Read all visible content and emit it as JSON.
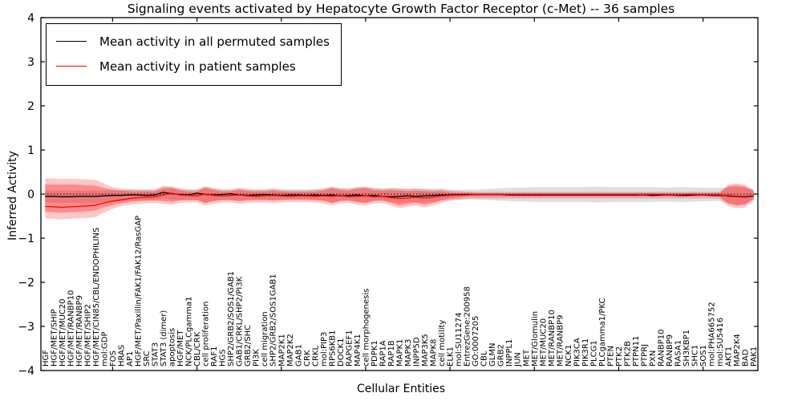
{
  "figure": {
    "title": "Signaling events activated by Hepatocyte Growth Factor Receptor (c-Met) -- 36 samples",
    "xlabel": "Cellular Entities",
    "ylabel": "Inferred Activity"
  },
  "legend": {
    "items": [
      {
        "label": "Mean activity in all permuted samples",
        "color": "#000000"
      },
      {
        "label": "Mean activity in patient samples",
        "color": "#ff0000"
      }
    ]
  },
  "chart_data": {
    "type": "line",
    "title": "Signaling events activated by Hepatocyte Growth Factor Receptor (c-Met) -- 36 samples",
    "xlabel": "Cellular Entities",
    "ylabel": "Inferred Activity",
    "ylim": [
      -4,
      4
    ],
    "yticks": [
      -4,
      -3,
      -2,
      -1,
      0,
      1,
      2,
      3,
      4
    ],
    "yticklabels": [
      "−4",
      "−3",
      "−2",
      "−1",
      "0",
      "1",
      "2",
      "3",
      "4"
    ],
    "grid": false,
    "legend_position": "upper left",
    "zero_reference_line": "dotted",
    "x_major_tick_indices": [
      8,
      18,
      28,
      38,
      48,
      58,
      68,
      78
    ],
    "categories": [
      "HGF",
      "HGF/MET/SHIP",
      "HGF/MET/MUC20",
      "HGF/MET/RANBP10",
      "HGF/MET/RANBP9",
      "HGF/MET/SHIP2",
      "HGF/MET/CIN85/CBL/ENDOPHILINS",
      "mol:GDP",
      "FOS",
      "HRAS",
      "AP1",
      "HGF/MET/Paxillin/FAK1/FAK12/RasGAP",
      "SRC",
      "STAT3",
      "STAT3 (dimer)",
      "apoptosis",
      "HGF/MET",
      "NCK/PLCgamma1",
      "CBL/CRK",
      "cell proliferation",
      "RAF1",
      "HGS",
      "SHP2/GRB2/SOS1/GAB1",
      "GAB1/CRKL/SHP2/PI3K",
      "GRB2/SHC",
      "PI3K",
      "cell migration",
      "SHP2/GRB2/SOS1GAB1",
      "MAP2K1",
      "MAP2K2",
      "GAB1",
      "CRK",
      "CRKL",
      "mol:PIP3",
      "RPS6KB1",
      "DOCK1",
      "RAPGEF1",
      "MAP4K1",
      "cell morphogenesis",
      "PDPK1",
      "RAP1A",
      "RAP1B",
      "MAPK1",
      "MAPK3",
      "INPP5D",
      "MAP3K5",
      "MAPK8",
      "cell motility",
      "ELK1",
      "mol:SU11274",
      "EntrezGene:200958",
      "GO:0007205",
      "CBL",
      "GLMN",
      "GRB2",
      "INPPL1",
      "JUN",
      "MET",
      "MET/Glomulin",
      "MET/MUC20",
      "MET/RANBP10",
      "MET/RANBP9",
      "NCK1",
      "PIK3CA",
      "PIK3R1",
      "PLCG1",
      "PLCgamma1/PKC",
      "PTEN",
      "PTK2",
      "PTK2B",
      "PTPN11",
      "PTPRJ",
      "PXN",
      "RANBP10",
      "RANBP9",
      "RASA1",
      "SH3KBP1",
      "SHC1",
      "SOS1",
      "mol:PHA665752",
      "mol:SU5416",
      "AKT1",
      "MAP2K4",
      "BAD",
      "PAK1"
    ],
    "series": [
      {
        "name": "Mean activity in all permuted samples",
        "color": "#000000",
        "values": [
          -0.05,
          -0.05,
          -0.06,
          -0.06,
          -0.05,
          -0.05,
          -0.05,
          -0.04,
          -0.03,
          -0.03,
          -0.02,
          -0.02,
          -0.03,
          -0.02,
          0.04,
          0.01,
          -0.01,
          -0.02,
          0.02,
          -0.01,
          -0.02,
          -0.01,
          0.01,
          -0.02,
          -0.03,
          -0.02,
          -0.01,
          -0.02,
          -0.03,
          -0.02,
          -0.02,
          -0.03,
          -0.02,
          -0.03,
          -0.02,
          -0.04,
          -0.03,
          -0.02,
          -0.04,
          -0.03,
          -0.05,
          -0.06,
          -0.05,
          -0.04,
          -0.05,
          -0.04,
          -0.03,
          -0.02,
          -0.02,
          -0.01,
          -0.01,
          -0.01,
          -0.01,
          -0.01,
          -0.01,
          -0.02,
          -0.02,
          -0.02,
          -0.02,
          -0.02,
          -0.02,
          -0.02,
          -0.02,
          -0.02,
          -0.02,
          -0.02,
          -0.02,
          -0.02,
          -0.02,
          -0.02,
          -0.02,
          -0.02,
          -0.03,
          -0.02,
          -0.02,
          -0.03,
          -0.03,
          -0.02,
          -0.02,
          -0.03,
          -0.03,
          -0.04,
          -0.05,
          -0.06,
          -0.04
        ]
      },
      {
        "name": "Mean activity in patient samples",
        "color": "#ff0000",
        "values": [
          -0.28,
          -0.29,
          -0.3,
          -0.29,
          -0.28,
          -0.27,
          -0.25,
          -0.2,
          -0.16,
          -0.13,
          -0.1,
          -0.08,
          -0.07,
          -0.06,
          -0.02,
          0.02,
          -0.02,
          -0.03,
          -0.04,
          0.0,
          -0.03,
          -0.04,
          -0.03,
          -0.02,
          -0.04,
          -0.05,
          -0.04,
          -0.03,
          -0.04,
          -0.05,
          -0.04,
          -0.04,
          -0.05,
          -0.04,
          -0.05,
          -0.03,
          -0.06,
          -0.05,
          -0.04,
          -0.06,
          -0.05,
          -0.08,
          -0.1,
          -0.09,
          -0.07,
          -0.09,
          -0.07,
          -0.04,
          -0.03,
          -0.02,
          -0.02,
          -0.01,
          -0.01,
          -0.01,
          -0.01,
          -0.01,
          -0.01,
          -0.01,
          -0.01,
          -0.01,
          -0.01,
          -0.01,
          -0.01,
          -0.01,
          -0.01,
          -0.01,
          -0.01,
          -0.01,
          -0.01,
          -0.01,
          -0.01,
          -0.02,
          -0.01,
          -0.01,
          -0.02,
          -0.02,
          -0.01,
          -0.01,
          -0.02,
          -0.02,
          -0.02,
          -0.05,
          -0.06,
          -0.07,
          -0.05
        ]
      }
    ],
    "bands": [
      {
        "name": "permuted samples range",
        "color": "#b0b0b0",
        "opacity": 0.4,
        "upper": [
          0.08,
          0.08,
          0.08,
          0.08,
          0.08,
          0.08,
          0.08,
          0.08,
          0.09,
          0.09,
          0.1,
          0.1,
          0.1,
          0.1,
          0.2,
          0.14,
          0.12,
          0.1,
          0.1,
          0.16,
          0.12,
          0.1,
          0.1,
          0.12,
          0.1,
          0.1,
          0.1,
          0.12,
          0.1,
          0.1,
          0.1,
          0.1,
          0.11,
          0.12,
          0.16,
          0.13,
          0.12,
          0.15,
          0.16,
          0.13,
          0.12,
          0.14,
          0.13,
          0.12,
          0.13,
          0.12,
          0.11,
          0.12,
          0.1,
          0.1,
          0.1,
          0.1,
          0.11,
          0.12,
          0.13,
          0.14,
          0.15,
          0.15,
          0.16,
          0.16,
          0.16,
          0.16,
          0.16,
          0.16,
          0.16,
          0.17,
          0.17,
          0.16,
          0.16,
          0.16,
          0.16,
          0.16,
          0.16,
          0.15,
          0.15,
          0.16,
          0.16,
          0.15,
          0.15,
          0.14,
          0.14,
          0.15,
          0.16,
          0.14,
          0.1
        ],
        "lower": [
          -0.2,
          -0.2,
          -0.2,
          -0.2,
          -0.2,
          -0.2,
          -0.2,
          -0.18,
          -0.17,
          -0.16,
          -0.15,
          -0.14,
          -0.14,
          -0.14,
          -0.1,
          -0.13,
          -0.14,
          -0.14,
          -0.14,
          -0.2,
          -0.16,
          -0.14,
          -0.14,
          -0.16,
          -0.14,
          -0.13,
          -0.13,
          -0.15,
          -0.13,
          -0.13,
          -0.13,
          -0.13,
          -0.14,
          -0.15,
          -0.2,
          -0.16,
          -0.15,
          -0.18,
          -0.2,
          -0.16,
          -0.15,
          -0.18,
          -0.2,
          -0.18,
          -0.18,
          -0.19,
          -0.17,
          -0.15,
          -0.13,
          -0.12,
          -0.12,
          -0.12,
          -0.13,
          -0.14,
          -0.15,
          -0.16,
          -0.17,
          -0.17,
          -0.18,
          -0.18,
          -0.18,
          -0.18,
          -0.18,
          -0.18,
          -0.18,
          -0.19,
          -0.19,
          -0.18,
          -0.18,
          -0.18,
          -0.18,
          -0.18,
          -0.18,
          -0.17,
          -0.17,
          -0.18,
          -0.18,
          -0.17,
          -0.17,
          -0.16,
          -0.16,
          -0.2,
          -0.25,
          -0.22,
          -0.12
        ]
      },
      {
        "name": "patient samples outer range",
        "color": "#ff0000",
        "opacity": 0.22,
        "upper": [
          0.35,
          0.35,
          0.34,
          0.35,
          0.34,
          0.33,
          0.32,
          0.24,
          0.16,
          0.12,
          0.11,
          0.1,
          0.1,
          0.1,
          0.16,
          0.18,
          0.12,
          0.1,
          0.1,
          0.18,
          0.13,
          0.1,
          0.1,
          0.14,
          0.11,
          0.1,
          0.1,
          0.12,
          0.1,
          0.09,
          0.09,
          0.09,
          0.1,
          0.12,
          0.17,
          0.13,
          0.12,
          0.16,
          0.17,
          0.13,
          0.12,
          0.13,
          0.12,
          0.11,
          0.12,
          0.11,
          0.1,
          0.11,
          0.08,
          0.07,
          0.06,
          0.05,
          0.05,
          0.05,
          0.05,
          0.05,
          0.05,
          0.05,
          0.05,
          0.05,
          0.05,
          0.05,
          0.05,
          0.05,
          0.05,
          0.05,
          0.05,
          0.05,
          0.05,
          0.05,
          0.05,
          0.05,
          0.05,
          0.05,
          0.05,
          0.05,
          0.05,
          0.05,
          0.05,
          0.05,
          0.06,
          0.22,
          0.24,
          0.21,
          0.1
        ],
        "lower": [
          -0.55,
          -0.56,
          -0.57,
          -0.56,
          -0.55,
          -0.54,
          -0.52,
          -0.42,
          -0.33,
          -0.27,
          -0.24,
          -0.22,
          -0.21,
          -0.2,
          -0.22,
          -0.24,
          -0.2,
          -0.19,
          -0.19,
          -0.26,
          -0.22,
          -0.19,
          -0.19,
          -0.22,
          -0.2,
          -0.19,
          -0.19,
          -0.2,
          -0.19,
          -0.18,
          -0.18,
          -0.18,
          -0.19,
          -0.21,
          -0.26,
          -0.21,
          -0.2,
          -0.24,
          -0.26,
          -0.21,
          -0.2,
          -0.26,
          -0.32,
          -0.28,
          -0.26,
          -0.3,
          -0.26,
          -0.2,
          -0.15,
          -0.13,
          -0.11,
          -0.1,
          -0.1,
          -0.1,
          -0.1,
          -0.1,
          -0.1,
          -0.1,
          -0.1,
          -0.1,
          -0.1,
          -0.1,
          -0.1,
          -0.1,
          -0.1,
          -0.1,
          -0.1,
          -0.1,
          -0.1,
          -0.1,
          -0.1,
          -0.1,
          -0.1,
          -0.1,
          -0.1,
          -0.1,
          -0.1,
          -0.1,
          -0.1,
          -0.1,
          -0.11,
          -0.28,
          -0.32,
          -0.3,
          -0.15
        ]
      },
      {
        "name": "patient samples inner range",
        "color": "#ff0000",
        "opacity": 0.3,
        "upper": [
          0.22,
          0.22,
          0.21,
          0.22,
          0.21,
          0.2,
          0.19,
          0.14,
          0.1,
          0.08,
          0.07,
          0.06,
          0.06,
          0.06,
          0.12,
          0.14,
          0.08,
          0.06,
          0.06,
          0.14,
          0.09,
          0.06,
          0.06,
          0.1,
          0.07,
          0.06,
          0.06,
          0.08,
          0.06,
          0.05,
          0.05,
          0.05,
          0.06,
          0.08,
          0.13,
          0.09,
          0.08,
          0.12,
          0.13,
          0.09,
          0.08,
          0.09,
          0.08,
          0.07,
          0.08,
          0.07,
          0.06,
          0.07,
          0.04,
          0.03,
          0.03,
          0.02,
          0.02,
          0.02,
          0.02,
          0.02,
          0.02,
          0.02,
          0.02,
          0.02,
          0.02,
          0.02,
          0.02,
          0.02,
          0.02,
          0.02,
          0.02,
          0.02,
          0.02,
          0.02,
          0.02,
          0.02,
          0.02,
          0.02,
          0.02,
          0.02,
          0.02,
          0.02,
          0.02,
          0.02,
          0.03,
          0.18,
          0.2,
          0.17,
          0.06
        ],
        "lower": [
          -0.4,
          -0.41,
          -0.42,
          -0.41,
          -0.4,
          -0.39,
          -0.37,
          -0.3,
          -0.25,
          -0.21,
          -0.18,
          -0.16,
          -0.15,
          -0.14,
          -0.16,
          -0.18,
          -0.14,
          -0.13,
          -0.13,
          -0.2,
          -0.16,
          -0.13,
          -0.13,
          -0.16,
          -0.14,
          -0.13,
          -0.13,
          -0.14,
          -0.13,
          -0.12,
          -0.12,
          -0.12,
          -0.13,
          -0.15,
          -0.2,
          -0.15,
          -0.14,
          -0.18,
          -0.2,
          -0.15,
          -0.14,
          -0.2,
          -0.26,
          -0.22,
          -0.2,
          -0.24,
          -0.2,
          -0.14,
          -0.1,
          -0.08,
          -0.06,
          -0.05,
          -0.05,
          -0.05,
          -0.05,
          -0.05,
          -0.05,
          -0.05,
          -0.05,
          -0.05,
          -0.05,
          -0.05,
          -0.05,
          -0.05,
          -0.05,
          -0.05,
          -0.05,
          -0.05,
          -0.05,
          -0.05,
          -0.05,
          -0.05,
          -0.05,
          -0.05,
          -0.05,
          -0.05,
          -0.05,
          -0.05,
          -0.05,
          -0.05,
          -0.06,
          -0.22,
          -0.26,
          -0.24,
          -0.1
        ]
      }
    ]
  }
}
